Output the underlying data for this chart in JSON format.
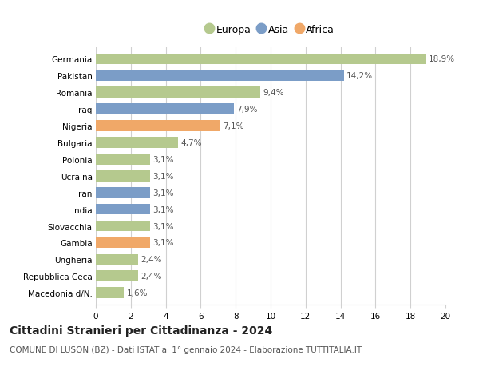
{
  "countries": [
    "Germania",
    "Pakistan",
    "Romania",
    "Iraq",
    "Nigeria",
    "Bulgaria",
    "Polonia",
    "Ucraina",
    "Iran",
    "India",
    "Slovacchia",
    "Gambia",
    "Ungheria",
    "Repubblica Ceca",
    "Macedonia d/N."
  ],
  "values": [
    18.9,
    14.2,
    9.4,
    7.9,
    7.1,
    4.7,
    3.1,
    3.1,
    3.1,
    3.1,
    3.1,
    3.1,
    2.4,
    2.4,
    1.6
  ],
  "labels": [
    "18,9%",
    "14,2%",
    "9,4%",
    "7,9%",
    "7,1%",
    "4,7%",
    "3,1%",
    "3,1%",
    "3,1%",
    "3,1%",
    "3,1%",
    "3,1%",
    "2,4%",
    "2,4%",
    "1,6%"
  ],
  "continents": [
    "Europa",
    "Asia",
    "Europa",
    "Asia",
    "Africa",
    "Europa",
    "Europa",
    "Europa",
    "Asia",
    "Asia",
    "Europa",
    "Africa",
    "Europa",
    "Europa",
    "Europa"
  ],
  "colors": {
    "Europa": "#b5c98e",
    "Asia": "#7b9dc7",
    "Africa": "#f0a868"
  },
  "xlim": [
    0,
    20
  ],
  "xticks": [
    0,
    2,
    4,
    6,
    8,
    10,
    12,
    14,
    16,
    18,
    20
  ],
  "title": "Cittadini Stranieri per Cittadinanza - 2024",
  "subtitle": "COMUNE DI LUSON (BZ) - Dati ISTAT al 1° gennaio 2024 - Elaborazione TUTTITALIA.IT",
  "background_color": "#ffffff",
  "grid_color": "#d0d0d0",
  "bar_height": 0.65,
  "label_fontsize": 7.5,
  "tick_fontsize": 7.5,
  "title_fontsize": 10,
  "subtitle_fontsize": 7.5
}
